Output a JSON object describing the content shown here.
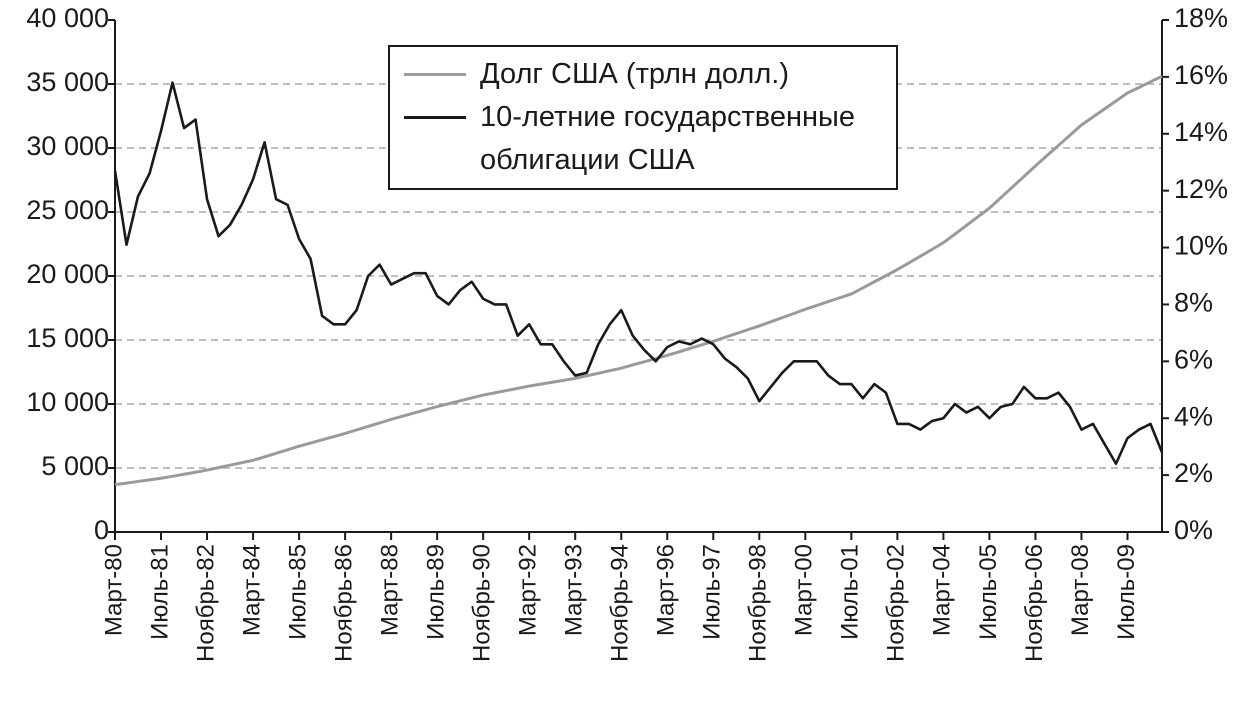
{
  "chart_data": {
    "type": "line",
    "categories": [
      "Март-80",
      null,
      null,
      null,
      "Июль-81",
      null,
      null,
      null,
      "Ноябрь-82",
      null,
      null,
      null,
      "Март-84",
      null,
      null,
      null,
      "Июль-85",
      null,
      null,
      null,
      "Ноябрь-86",
      null,
      null,
      null,
      "Март-88",
      null,
      null,
      null,
      "Июль-89",
      null,
      null,
      null,
      "Ноябрь-90",
      null,
      null,
      null,
      "Март-92",
      null,
      null,
      null,
      "Март-93",
      null,
      null,
      null,
      "Ноябрь-94",
      null,
      null,
      null,
      "Март-96",
      null,
      null,
      null,
      "Июль-97",
      null,
      null,
      null,
      "Ноябрь-98",
      null,
      null,
      null,
      "Март-00",
      null,
      null,
      null,
      "Июль-01",
      null,
      null,
      null,
      "Ноябрь-02",
      null,
      null,
      null,
      "Март-04",
      null,
      null,
      null,
      "Июль-05",
      null,
      null,
      null,
      "Ноябрь-06",
      null,
      null,
      null,
      "Март-08",
      null,
      null,
      null,
      "Июль-09",
      null,
      null,
      null
    ],
    "series": [
      {
        "name": "Долг США (трлн долл.)",
        "color": "#9a9a9a",
        "values": [
          3700,
          3820,
          3950,
          4070,
          4200,
          4350,
          4510,
          4670,
          4840,
          5030,
          5220,
          5410,
          5600,
          5870,
          6150,
          6420,
          6700,
          6950,
          7200,
          7450,
          7700,
          7970,
          8250,
          8520,
          8800,
          9050,
          9300,
          9550,
          9800,
          10020,
          10250,
          10470,
          10700,
          10870,
          11050,
          11220,
          11400,
          11550,
          11700,
          11850,
          12000,
          12200,
          12400,
          12600,
          12800,
          13050,
          13300,
          13550,
          13800,
          14070,
          14350,
          14620,
          14900,
          15200,
          15500,
          15800,
          16100,
          16420,
          16750,
          17070,
          17400,
          17700,
          18000,
          18300,
          18600,
          19070,
          19550,
          20020,
          20500,
          21020,
          21550,
          22070,
          22600,
          23270,
          23950,
          24620,
          25300,
          26120,
          26950,
          27770,
          28600,
          29400,
          30200,
          31000,
          31800,
          32420,
          33050,
          33670,
          34300,
          34730,
          35170,
          35600
        ]
      },
      {
        "name": "10-летние государственные облигации США",
        "color": "#1a1a1a",
        "axis": "y2",
        "values": [
          12.7,
          10.1,
          11.8,
          12.6,
          14.1,
          15.8,
          14.2,
          14.5,
          11.7,
          10.4,
          10.8,
          11.5,
          12.4,
          13.7,
          11.7,
          11.5,
          10.3,
          9.6,
          7.6,
          7.3,
          7.3,
          7.8,
          9.0,
          9.4,
          8.7,
          8.9,
          9.1,
          9.1,
          8.3,
          8.0,
          8.5,
          8.8,
          8.2,
          8.0,
          8.0,
          6.9,
          7.3,
          6.6,
          6.6,
          6.0,
          5.5,
          5.6,
          6.6,
          7.3,
          7.8,
          6.9,
          6.4,
          6.0,
          6.5,
          6.7,
          6.6,
          6.8,
          6.6,
          6.1,
          5.8,
          5.4,
          4.6,
          5.1,
          5.6,
          6.0,
          6.0,
          6.0,
          5.5,
          5.2,
          5.2,
          4.7,
          5.2,
          4.9,
          3.8,
          3.8,
          3.6,
          3.9,
          4.0,
          4.5,
          4.2,
          4.4,
          4.0,
          4.4,
          4.5,
          5.1,
          4.7,
          4.7,
          4.9,
          4.4,
          3.6,
          3.8,
          3.1,
          2.4,
          3.3,
          3.6,
          3.8,
          2.8
        ]
      }
    ],
    "ylim": [
      0,
      40000
    ],
    "yticks": [
      0,
      {
        "value": 5000,
        "label": "5 000"
      },
      {
        "value": 10000,
        "label": "10 000"
      },
      {
        "value": 15000,
        "label": "15 000"
      },
      {
        "value": 20000,
        "label": "20 000"
      },
      {
        "value": 25000,
        "label": "25 000"
      },
      {
        "value": 30000,
        "label": "30 000"
      },
      {
        "value": 35000,
        "label": "35 000"
      },
      {
        "value": 40000,
        "label": "40 000"
      }
    ],
    "y2lim": [
      0,
      18
    ],
    "y2ticks": [
      {
        "value": 0,
        "label": "0%"
      },
      {
        "value": 2,
        "label": "2%"
      },
      {
        "value": 4,
        "label": "4%"
      },
      {
        "value": 6,
        "label": "6%"
      },
      {
        "value": 8,
        "label": "8%"
      },
      {
        "value": 10,
        "label": "10%"
      },
      {
        "value": 12,
        "label": "12%"
      },
      {
        "value": 14,
        "label": "14%"
      },
      {
        "value": 16,
        "label": "16%"
      },
      {
        "value": 18,
        "label": "18%"
      }
    ],
    "grid": true
  }
}
